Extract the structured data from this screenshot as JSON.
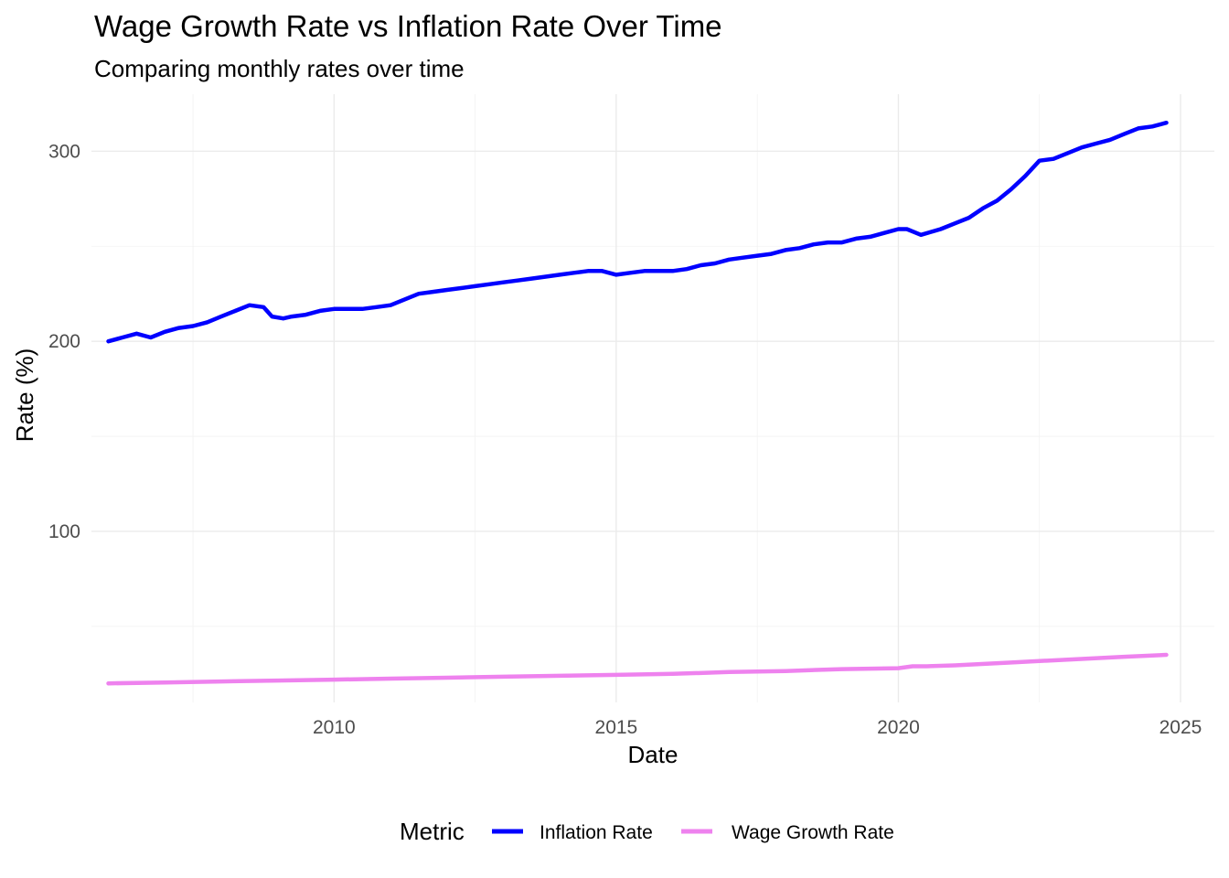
{
  "chart_data": {
    "type": "line",
    "title": "Wage Growth Rate vs Inflation Rate Over Time",
    "subtitle": "Comparing monthly rates over time",
    "xlabel": "Date",
    "ylabel": "Rate (%)",
    "xlim": [
      2005.7,
      2025.6
    ],
    "ylim": [
      10,
      330
    ],
    "x_ticks": [
      2010,
      2015,
      2020,
      2025
    ],
    "y_ticks": [
      100,
      200,
      300
    ],
    "grid": true,
    "legend": {
      "title": "Metric",
      "position": "bottom"
    },
    "series": [
      {
        "name": "Inflation Rate",
        "color": "#0000FF",
        "x": [
          2006.0,
          2006.25,
          2006.5,
          2006.75,
          2007.0,
          2007.25,
          2007.5,
          2007.75,
          2008.0,
          2008.25,
          2008.5,
          2008.75,
          2008.9,
          2009.1,
          2009.25,
          2009.5,
          2009.75,
          2010.0,
          2010.25,
          2010.5,
          2010.75,
          2011.0,
          2011.25,
          2011.5,
          2011.75,
          2012.0,
          2012.25,
          2012.5,
          2012.75,
          2013.0,
          2013.25,
          2013.5,
          2013.75,
          2014.0,
          2014.25,
          2014.5,
          2014.75,
          2015.0,
          2015.25,
          2015.5,
          2015.75,
          2016.0,
          2016.25,
          2016.5,
          2016.75,
          2017.0,
          2017.25,
          2017.5,
          2017.75,
          2018.0,
          2018.25,
          2018.5,
          2018.75,
          2019.0,
          2019.25,
          2019.5,
          2019.75,
          2020.0,
          2020.15,
          2020.4,
          2020.75,
          2021.0,
          2021.25,
          2021.5,
          2021.75,
          2022.0,
          2022.25,
          2022.5,
          2022.75,
          2023.0,
          2023.25,
          2023.5,
          2023.75,
          2024.0,
          2024.25,
          2024.5,
          2024.75
        ],
        "values": [
          200,
          202,
          204,
          202,
          205,
          207,
          208,
          210,
          213,
          216,
          219,
          218,
          213,
          212,
          213,
          214,
          216,
          217,
          217,
          217,
          218,
          219,
          222,
          225,
          226,
          227,
          228,
          229,
          230,
          231,
          232,
          233,
          234,
          235,
          236,
          237,
          237,
          235,
          236,
          237,
          237,
          237,
          238,
          240,
          241,
          243,
          244,
          245,
          246,
          248,
          249,
          251,
          252,
          252,
          254,
          255,
          257,
          259,
          259,
          256,
          259,
          262,
          265,
          270,
          274,
          280,
          287,
          295,
          296,
          299,
          302,
          304,
          306,
          309,
          312,
          313,
          315
        ]
      },
      {
        "name": "Wage Growth Rate",
        "color": "#EE82EE",
        "x": [
          2006.0,
          2007.0,
          2008.0,
          2009.0,
          2010.0,
          2011.0,
          2012.0,
          2013.0,
          2014.0,
          2015.0,
          2016.0,
          2017.0,
          2018.0,
          2019.0,
          2020.0,
          2020.25,
          2020.5,
          2021.0,
          2022.0,
          2023.0,
          2024.0,
          2024.75
        ],
        "values": [
          20,
          20.5,
          21,
          21.5,
          22,
          22.5,
          23,
          23.5,
          24,
          24.5,
          25,
          26,
          26.5,
          27.5,
          28,
          29,
          29,
          29.5,
          31,
          32.5,
          34,
          35
        ]
      }
    ]
  }
}
